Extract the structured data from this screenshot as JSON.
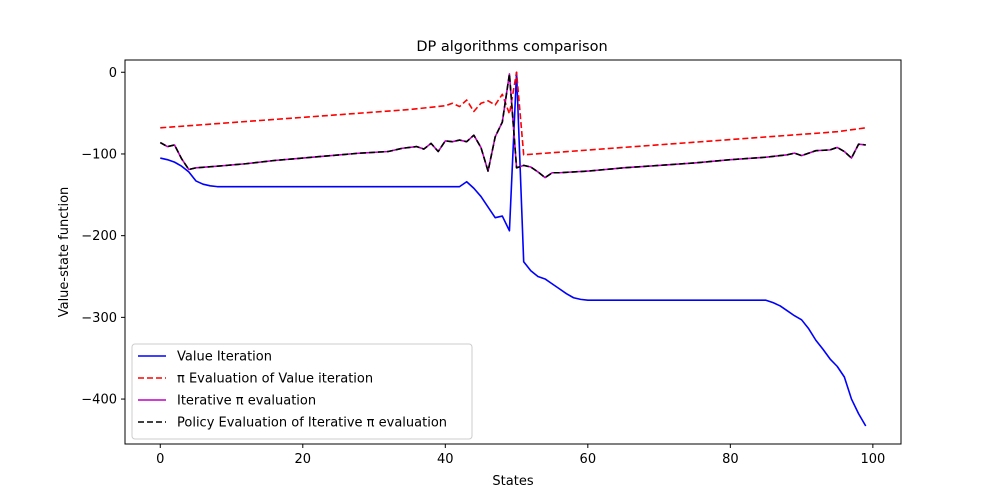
{
  "chart_data": {
    "type": "line",
    "title": "DP algorithms comparison",
    "xlabel": "States",
    "ylabel": "Value-state function",
    "xlim": [
      -4.95,
      103.95
    ],
    "ylim": [
      -455,
      15
    ],
    "xticks": [
      0,
      20,
      40,
      60,
      80,
      100
    ],
    "xtick_labels": [
      "0",
      "20",
      "40",
      "60",
      "80",
      "100"
    ],
    "yticks": [
      0,
      -100,
      -200,
      -300,
      -400
    ],
    "ytick_labels": [
      "0",
      "−100",
      "−200",
      "−300",
      "−400"
    ],
    "grid": false,
    "legend_position": "lower-left",
    "series": [
      {
        "name": "Value Iteration",
        "color": "#0000ff",
        "dash": "solid",
        "x": [
          0,
          1,
          2,
          3,
          4,
          5,
          6,
          7,
          8,
          9,
          10,
          11,
          12,
          13,
          14,
          15,
          16,
          17,
          18,
          19,
          20,
          21,
          22,
          23,
          24,
          25,
          26,
          27,
          28,
          29,
          30,
          31,
          32,
          33,
          34,
          35,
          36,
          37,
          38,
          39,
          40,
          41,
          42,
          43,
          44,
          45,
          46,
          47,
          48,
          49,
          50,
          51,
          52,
          53,
          54,
          55,
          56,
          57,
          58,
          59,
          60,
          61,
          62,
          63,
          64,
          65,
          66,
          67,
          68,
          69,
          70,
          71,
          72,
          73,
          74,
          75,
          76,
          77,
          78,
          79,
          80,
          81,
          82,
          83,
          84,
          85,
          86,
          87,
          88,
          89,
          90,
          91,
          92,
          93,
          94,
          95,
          96,
          97,
          98,
          99
        ],
        "y": [
          -105,
          -107,
          -110,
          -115,
          -122,
          -133,
          -137,
          -139,
          -140,
          -140,
          -140,
          -140,
          -140,
          -140,
          -140,
          -140,
          -140,
          -140,
          -140,
          -140,
          -140,
          -140,
          -140,
          -140,
          -140,
          -140,
          -140,
          -140,
          -140,
          -140,
          -140,
          -140,
          -140,
          -140,
          -140,
          -140,
          -140,
          -140,
          -140,
          -140,
          -140,
          -140,
          -140,
          -134,
          -142,
          -152,
          -165,
          -178,
          -176,
          -194,
          0,
          -232,
          -243,
          -250,
          -253,
          -259,
          -265,
          -271,
          -276,
          -278,
          -279,
          -279,
          -279,
          -279,
          -279,
          -279,
          -279,
          -279,
          -279,
          -279,
          -279,
          -279,
          -279,
          -279,
          -279,
          -279,
          -279,
          -279,
          -279,
          -279,
          -279,
          -279,
          -279,
          -279,
          -279,
          -279,
          -282,
          -286,
          -292,
          -298,
          -303,
          -314,
          -328,
          -339,
          -351,
          -360,
          -373,
          -400,
          -418,
          -433
        ]
      },
      {
        "name": "π Evaluation of Value iteration",
        "color": "#ff0000",
        "dash": "dashed",
        "x": [
          0,
          5,
          10,
          15,
          20,
          25,
          30,
          35,
          40,
          41,
          42,
          43,
          44,
          45,
          46,
          47,
          48,
          49,
          50,
          51,
          55,
          60,
          65,
          70,
          75,
          80,
          85,
          90,
          95,
          99
        ],
        "y": [
          -68,
          -64.8,
          -61.6,
          -58.4,
          -55.2,
          -52,
          -48.8,
          -45.6,
          -41,
          -38,
          -42,
          -34,
          -48,
          -38,
          -35,
          -40,
          -27,
          -51,
          0,
          -101,
          -98.5,
          -95.2,
          -92,
          -88.8,
          -85.6,
          -82.4,
          -79.2,
          -76,
          -72.8,
          -68
        ]
      },
      {
        "name": "Iterative π evaluation",
        "color": "#bf00bf",
        "dash": "solid",
        "x": [
          0,
          1,
          2,
          3,
          4,
          5,
          8,
          12,
          16,
          20,
          24,
          28,
          32,
          34,
          36,
          37,
          38,
          39,
          40,
          41,
          42,
          43,
          44,
          45,
          46,
          47,
          48,
          49,
          50,
          51,
          52,
          53,
          54,
          55,
          56,
          60,
          65,
          70,
          75,
          80,
          85,
          88,
          89,
          90,
          92,
          94,
          95,
          96,
          97,
          98,
          99
        ],
        "y": [
          -86,
          -91,
          -89,
          -106,
          -119,
          -117,
          -115,
          -112,
          -108,
          -105,
          -102,
          -99,
          -97,
          -93,
          -91,
          -94,
          -87,
          -97,
          -84,
          -85,
          -83,
          -85,
          -77,
          -92,
          -121,
          -79,
          -61,
          -2,
          -117,
          -114,
          -116,
          -122,
          -129,
          -123,
          -123,
          -121,
          -117,
          -114,
          -111,
          -107,
          -104,
          -101,
          -99,
          -102,
          -96,
          -95,
          -92,
          -97,
          -105,
          -88,
          -89
        ]
      },
      {
        "name": "Policy Evaluation of Iterative π evaluation",
        "color": "#000000",
        "dash": "dashed",
        "x": [
          0,
          1,
          2,
          3,
          4,
          5,
          8,
          12,
          16,
          20,
          24,
          28,
          32,
          34,
          36,
          37,
          38,
          39,
          40,
          41,
          42,
          43,
          44,
          45,
          46,
          47,
          48,
          49,
          50,
          51,
          52,
          53,
          54,
          55,
          56,
          60,
          65,
          70,
          75,
          80,
          85,
          88,
          89,
          90,
          92,
          94,
          95,
          96,
          97,
          98,
          99
        ],
        "y": [
          -86,
          -91,
          -89,
          -106,
          -119,
          -117,
          -115,
          -112,
          -108,
          -105,
          -102,
          -99,
          -97,
          -93,
          -91,
          -94,
          -87,
          -97,
          -84,
          -85,
          -83,
          -85,
          -77,
          -92,
          -121,
          -79,
          -61,
          -2,
          -117,
          -114,
          -116,
          -122,
          -129,
          -123,
          -123,
          -121,
          -117,
          -114,
          -111,
          -107,
          -104,
          -101,
          -99,
          -102,
          -96,
          -95,
          -92,
          -97,
          -105,
          -88,
          -89
        ]
      }
    ]
  }
}
